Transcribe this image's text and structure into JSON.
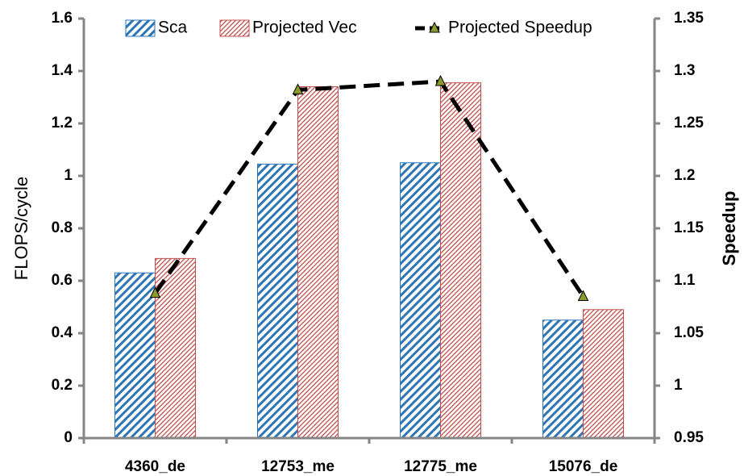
{
  "chart_data": {
    "type": "bar",
    "categories": [
      "4360_de",
      "12753_me",
      "12775_me",
      "15076_de"
    ],
    "series": [
      {
        "name": "Sca",
        "color": "#2e75b6",
        "values": [
          0.63,
          1.045,
          1.05,
          0.45
        ]
      },
      {
        "name": "Projected Vec",
        "color": "#c0504d",
        "values": [
          0.685,
          1.34,
          1.355,
          0.49
        ]
      },
      {
        "name": "Projected Speedup",
        "color": "#000000",
        "type": "line",
        "axis": "y2",
        "values": [
          1.088,
          1.282,
          1.29,
          1.085
        ]
      }
    ],
    "ylabel": "FLOPS/cycle",
    "y2label": "Speedup",
    "ylim": [
      0,
      1.6
    ],
    "yticks": [
      0,
      0.2,
      0.4,
      0.6,
      0.8,
      1,
      1.2,
      1.4,
      1.6
    ],
    "y2lim": [
      0.95,
      1.35
    ],
    "y2ticks": [
      0.95,
      1,
      1.05,
      1.1,
      1.15,
      1.2,
      1.25,
      1.3,
      1.35
    ],
    "legend": "top"
  }
}
